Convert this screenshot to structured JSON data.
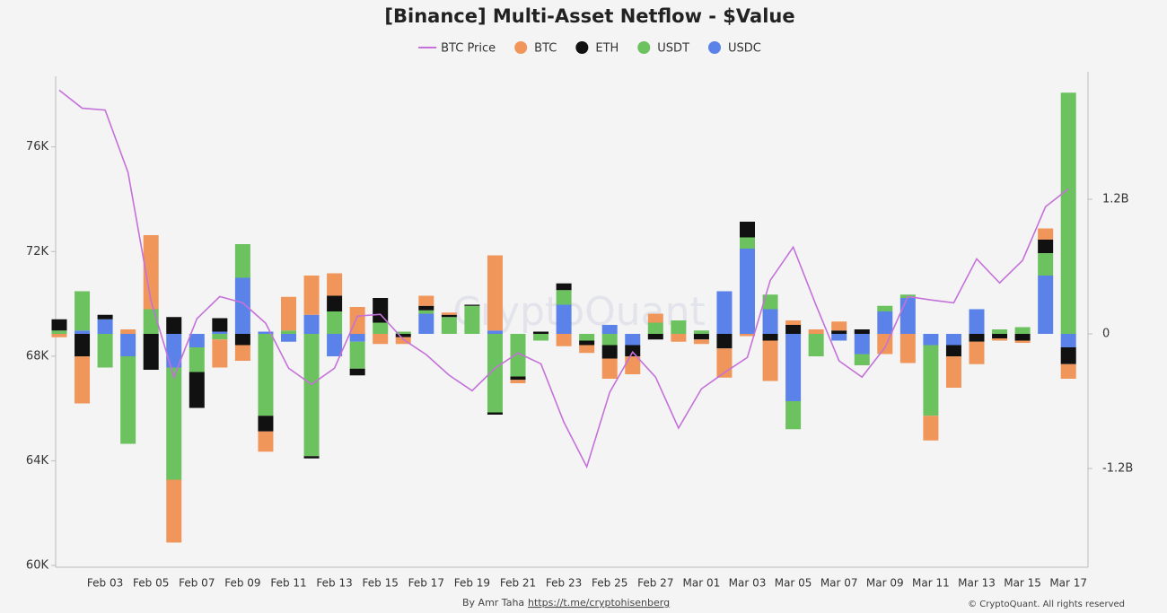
{
  "chart_data": {
    "type": "bar",
    "stacked": true,
    "title": "[Binance] Multi-Asset Netflow - $Value",
    "watermark": "CryptoQuant",
    "credit": "By Amr Taha",
    "credit_link": "https://t.me/cryptohisenberg",
    "copyright": "© CryptoQuant. All rights reserved",
    "categories": [
      null,
      null,
      "Feb 03",
      null,
      "Feb 05",
      null,
      "Feb 07",
      null,
      "Feb 09",
      null,
      "Feb 11",
      null,
      "Feb 13",
      null,
      "Feb 15",
      null,
      "Feb 17",
      null,
      "Feb 19",
      null,
      "Feb 21",
      null,
      "Feb 23",
      null,
      "Feb 25",
      null,
      "Feb 27",
      null,
      "Mar 01",
      null,
      "Mar 03",
      null,
      "Mar 05",
      null,
      "Mar 07",
      null,
      "Mar 09",
      null,
      "Mar 11",
      null,
      "Mar 13",
      null,
      "Mar 15",
      null,
      "Mar 17"
    ],
    "ylim": [
      60000,
      78700
    ],
    "yticks": [
      {
        "value": 60000,
        "label": "60K"
      },
      {
        "value": 64000,
        "label": "64K"
      },
      {
        "value": 68000,
        "label": "68K"
      },
      {
        "value": 72000,
        "label": "72K"
      },
      {
        "value": 76000,
        "label": "76K"
      }
    ],
    "y2lim": [
      -2.064,
      2.296
    ],
    "y2ticks": [
      {
        "value": -1.2,
        "label": "-1.2B"
      },
      0,
      {
        "value": 1.2,
        "label": "1.2B"
      }
    ],
    "series": [
      {
        "name": "BTC Price",
        "type": "line",
        "axis": "y",
        "color": "#c471d9",
        "values": [
          78170,
          77480,
          77410,
          75020,
          70110,
          67200,
          69430,
          70280,
          70040,
          69260,
          67540,
          66920,
          67540,
          69530,
          69600,
          68640,
          68060,
          67270,
          66680,
          67540,
          68120,
          67710,
          65480,
          63770,
          66620,
          68160,
          67200,
          65250,
          66750,
          67370,
          67950,
          70900,
          72170,
          69940,
          67820,
          67200,
          68330,
          70280,
          70150,
          70040,
          71720,
          70800,
          71660,
          73710,
          74400
        ]
      },
      {
        "name": "BTC",
        "axis": "y2",
        "color": "#f0965a",
        "values": [
          -0.03,
          -0.42,
          0,
          0.04,
          0.66,
          -0.56,
          0,
          -0.25,
          -0.14,
          -0.18,
          0.3,
          0.35,
          0.2,
          0.24,
          -0.09,
          -0.06,
          0.09,
          0.02,
          0,
          0.67,
          -0.03,
          0,
          -0.11,
          -0.07,
          -0.18,
          -0.16,
          0.08,
          -0.07,
          -0.04,
          -0.26,
          -0.02,
          -0.36,
          0.04,
          0.04,
          0.08,
          0,
          -0.18,
          -0.26,
          -0.22,
          -0.28,
          -0.2,
          -0.02,
          -0.02,
          0.1,
          -0.13
        ]
      },
      {
        "name": "ETH",
        "axis": "y2",
        "color": "#111111",
        "values": [
          0.1,
          -0.2,
          0.04,
          0,
          -0.32,
          0.15,
          -0.32,
          0.12,
          -0.1,
          -0.14,
          0,
          -0.02,
          0.14,
          -0.06,
          0.22,
          -0.03,
          0.04,
          0.02,
          0.01,
          -0.02,
          -0.03,
          0.02,
          0.06,
          -0.04,
          -0.12,
          -0.1,
          -0.05,
          0,
          -0.05,
          -0.13,
          0.14,
          -0.06,
          0.08,
          0,
          0.03,
          0.04,
          0,
          0,
          0,
          -0.1,
          -0.07,
          -0.04,
          -0.06,
          0.12,
          -0.15
        ]
      },
      {
        "name": "USDT",
        "axis": "y2",
        "color": "#6cc25e",
        "values": [
          0.03,
          0.35,
          -0.3,
          -0.78,
          0.22,
          -1.0,
          -0.22,
          -0.05,
          0.3,
          -0.73,
          0.03,
          -1.09,
          0.2,
          -0.24,
          0.1,
          0.02,
          0.03,
          0.15,
          0.25,
          -0.7,
          -0.38,
          -0.06,
          0.13,
          -0.06,
          -0.1,
          0,
          0.1,
          0.12,
          0.03,
          0,
          0.1,
          0.13,
          -0.25,
          -0.2,
          0,
          -0.1,
          0.05,
          0.03,
          -0.63,
          0,
          0,
          0.04,
          0.06,
          0.2,
          2.15
        ]
      },
      {
        "name": "USDC",
        "axis": "y2",
        "color": "#5b82e8",
        "values": [
          0,
          0.03,
          0.13,
          -0.2,
          0,
          -0.3,
          -0.12,
          0.02,
          0.5,
          0.02,
          -0.07,
          0.17,
          -0.2,
          -0.07,
          0,
          0,
          0.18,
          0,
          0,
          0.03,
          0,
          0,
          0.26,
          0,
          0.08,
          -0.1,
          0,
          0,
          0,
          0.38,
          0.76,
          0.22,
          -0.6,
          0,
          -0.06,
          -0.18,
          0.2,
          0.32,
          -0.1,
          -0.1,
          0.22,
          0,
          0,
          0.52,
          -0.12
        ]
      }
    ]
  }
}
